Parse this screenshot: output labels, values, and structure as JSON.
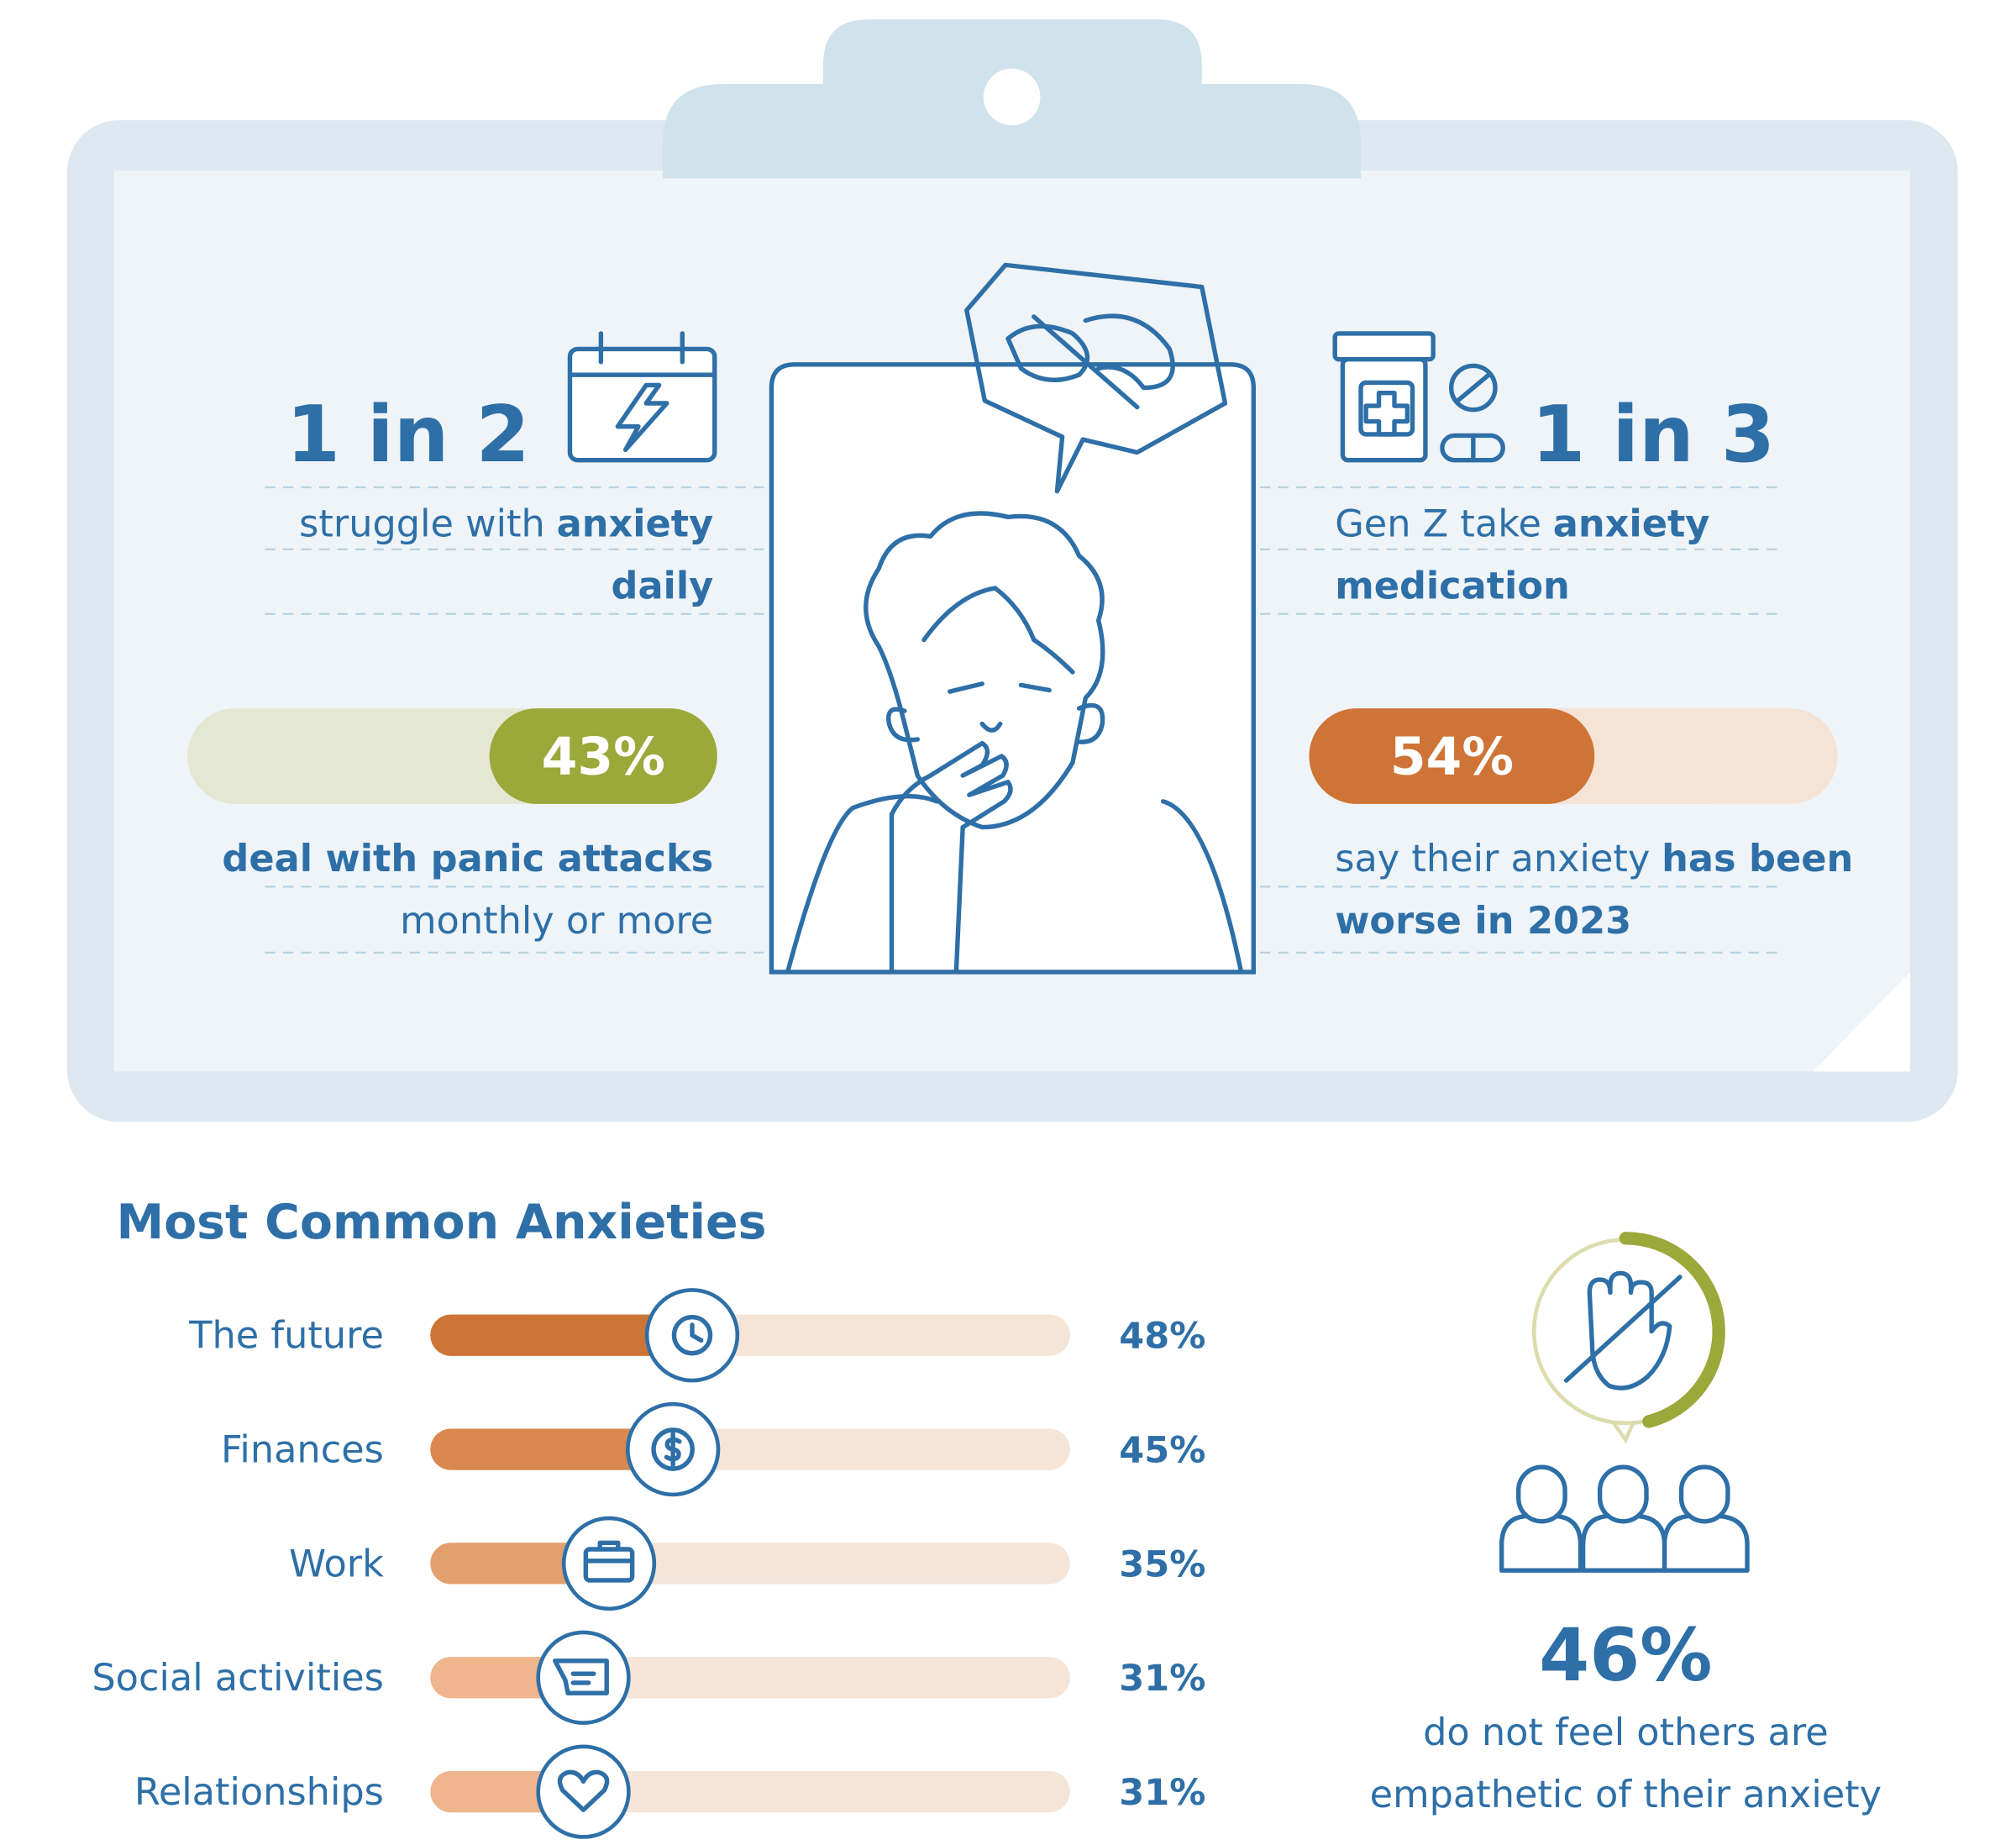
{
  "stats": [
    {
      "headline": "1 in 2",
      "lines": [
        [
          {
            "text": "struggle with",
            "bold": false
          },
          {
            "text": "anxiety",
            "bold": true
          }
        ],
        [
          {
            "text": "daily",
            "bold": true
          }
        ]
      ]
    },
    {
      "headline": "1 in 3",
      "lines": [
        [
          {
            "text": "Gen Z take",
            "bold": false
          },
          {
            "text": "anxiety",
            "bold": true
          }
        ],
        [
          {
            "text": "medication",
            "bold": true
          }
        ]
      ]
    }
  ],
  "bars": [
    {
      "value": 43,
      "label": "43%",
      "color": "#9ba83a",
      "track": "#e4e8d3",
      "lines": [
        [
          {
            "text": "deal with panic attacks",
            "bold": true
          }
        ],
        [
          {
            "text": "monthly or more",
            "bold": false
          }
        ]
      ]
    },
    {
      "value": 54,
      "label": "54%",
      "color": "#cf7436",
      "track": "#f5e3d6",
      "lines": [
        [
          {
            "text": "say their anxiety",
            "bold": false
          },
          {
            "text": "has been",
            "bold": true
          }
        ],
        [
          {
            "text": "worse in 2023",
            "bold": true
          }
        ]
      ]
    }
  ],
  "chart_data": {
    "type": "bar",
    "orientation": "horizontal",
    "title": "Most Common Anxieties",
    "categories": [
      "The future",
      "Finances",
      "Work",
      "Social activities",
      "Relationships"
    ],
    "values": [
      48,
      45,
      35,
      31,
      31
    ],
    "value_labels": [
      "48%",
      "45%",
      "35%",
      "31%",
      "31%"
    ],
    "colors": [
      "#cc7537",
      "#d9894f",
      "#e3a06f",
      "#efb58c",
      "#efb58c"
    ],
    "track": "#f5e5d8",
    "xlim": [
      0,
      100
    ]
  },
  "empathy": {
    "value": 46,
    "label": "46%",
    "color": "#9ba83a",
    "lines": [
      "do not feel others are",
      "empathetic of their anxiety"
    ]
  }
}
